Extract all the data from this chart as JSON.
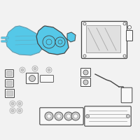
{
  "bg_color": "#f2f2f2",
  "highlight_color": "#55c8e8",
  "outline_color": "#6699aa",
  "dark_outline": "#444444",
  "medium_gray": "#999999",
  "white": "#ffffff",
  "light_gray": "#cccccc",
  "panel_fill": "#f8f8f8"
}
